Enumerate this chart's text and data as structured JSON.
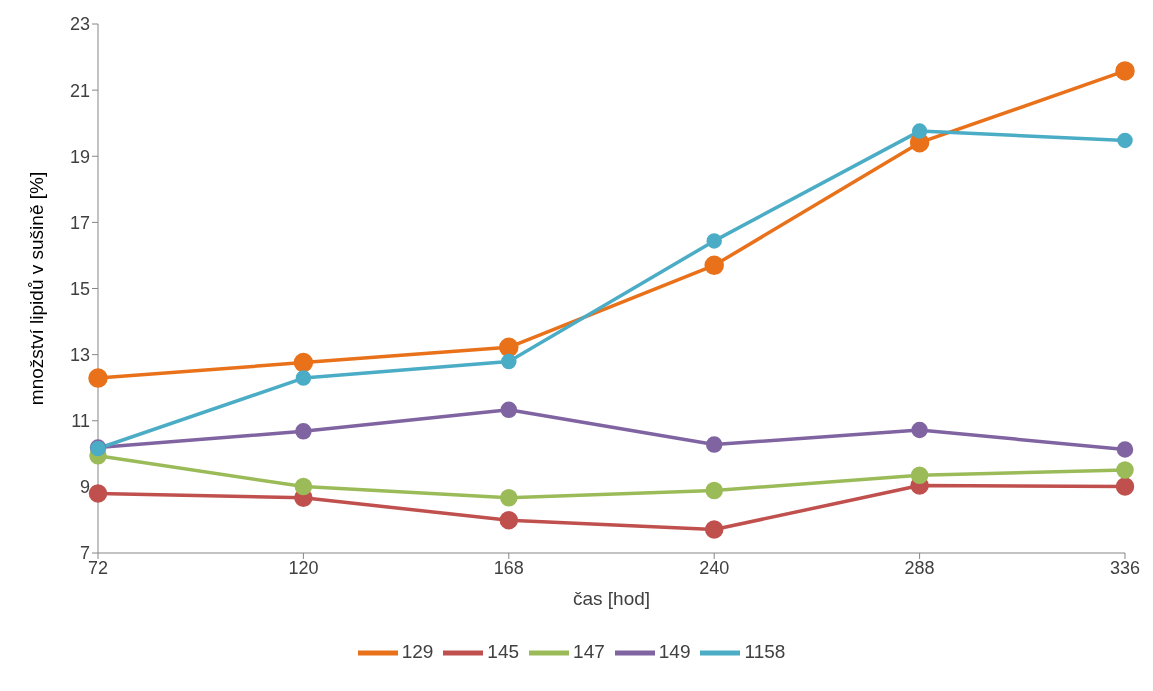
{
  "chart_data": {
    "type": "line",
    "xlabel": "čas [hod]",
    "ylabel": "množství lipidů v sušině [%]",
    "categories": [
      "72",
      "120",
      "168",
      "240",
      "288",
      "336"
    ],
    "series": [
      {
        "name": "129",
        "color": "#e8711a",
        "values": [
          12.29,
          12.76,
          13.22,
          15.7,
          19.41,
          21.58
        ]
      },
      {
        "name": "145",
        "color": "#c0504d",
        "values": [
          8.8,
          8.67,
          7.99,
          7.71,
          9.04,
          9.01
        ]
      },
      {
        "name": "147",
        "color": "#9bbb59",
        "values": [
          9.94,
          9.01,
          8.67,
          8.89,
          9.35,
          9.51
        ]
      },
      {
        "name": "149",
        "color": "#8064a2",
        "values": [
          10.19,
          10.68,
          11.33,
          10.28,
          10.72,
          10.13
        ]
      },
      {
        "name": "1158",
        "color": "#4bacc6",
        "values": [
          10.16,
          12.29,
          12.79,
          16.44,
          19.76,
          19.48
        ]
      }
    ],
    "ylim": [
      7,
      23
    ],
    "yticks": [
      7,
      9,
      11,
      13,
      15,
      17,
      19,
      21,
      23
    ],
    "grid": false,
    "legend": "bottom",
    "marker": "circle",
    "line_style": "solid"
  }
}
